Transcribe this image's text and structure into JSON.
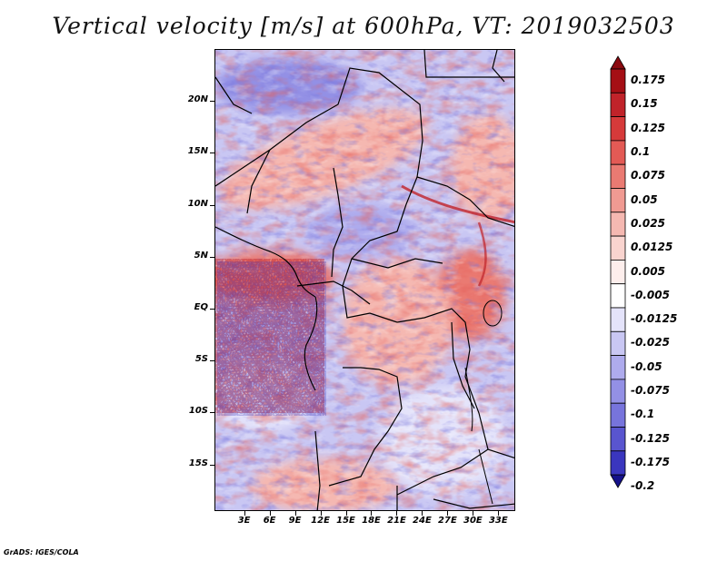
{
  "title": "Vertical velocity [m/s] at 600hPa, VT: 2019032503",
  "credit": "GrADS: IGES/COLA",
  "map": {
    "lat_range": [
      -19.5,
      25
    ],
    "lon_range": [
      -0.5,
      35
    ],
    "lat_ticks": [
      {
        "value": 20,
        "label": "20N"
      },
      {
        "value": 15,
        "label": "15N"
      },
      {
        "value": 10,
        "label": "10N"
      },
      {
        "value": 5,
        "label": "5N"
      },
      {
        "value": 0,
        "label": "EQ"
      },
      {
        "value": -5,
        "label": "5S"
      },
      {
        "value": -10,
        "label": "10S"
      },
      {
        "value": -15,
        "label": "15S"
      }
    ],
    "lon_ticks": [
      {
        "value": 3,
        "label": "3E"
      },
      {
        "value": 6,
        "label": "6E"
      },
      {
        "value": 9,
        "label": "9E"
      },
      {
        "value": 12,
        "label": "12E"
      },
      {
        "value": 15,
        "label": "15E"
      },
      {
        "value": 18,
        "label": "18E"
      },
      {
        "value": 21,
        "label": "21E"
      },
      {
        "value": 24,
        "label": "24E"
      },
      {
        "value": 27,
        "label": "27E"
      },
      {
        "value": 30,
        "label": "30E"
      },
      {
        "value": 33,
        "label": "33E"
      }
    ],
    "field": "vertical velocity",
    "level": "600hPa",
    "valid_time": "2019032503"
  },
  "colorbar": {
    "levels": [
      {
        "label": "0.175",
        "color": "#a50f15"
      },
      {
        "label": "0.15",
        "color": "#c0232a"
      },
      {
        "label": "0.125",
        "color": "#d63a3a"
      },
      {
        "label": "0.1",
        "color": "#e35a55"
      },
      {
        "label": "0.075",
        "color": "#ea7a72"
      },
      {
        "label": "0.05",
        "color": "#f09a92"
      },
      {
        "label": "0.025",
        "color": "#f5b8b1"
      },
      {
        "label": "0.0125",
        "color": "#f9d4cf"
      },
      {
        "label": "0.005",
        "color": "#fdeeec"
      },
      {
        "label": "-0.005",
        "color": "#ffffff"
      },
      {
        "label": "-0.0125",
        "color": "#e4e3fa"
      },
      {
        "label": "-0.025",
        "color": "#c9c7f3"
      },
      {
        "label": "-0.05",
        "color": "#aeabed"
      },
      {
        "label": "-0.075",
        "color": "#9390e5"
      },
      {
        "label": "-0.1",
        "color": "#7774dc"
      },
      {
        "label": "-0.125",
        "color": "#5955cf"
      },
      {
        "label": "-0.175",
        "color": "#3a36be"
      },
      {
        "label": "-0.2",
        "color": "#2420a8"
      }
    ],
    "top_color": "#8b0a10",
    "bottom_color": "#15118a"
  }
}
